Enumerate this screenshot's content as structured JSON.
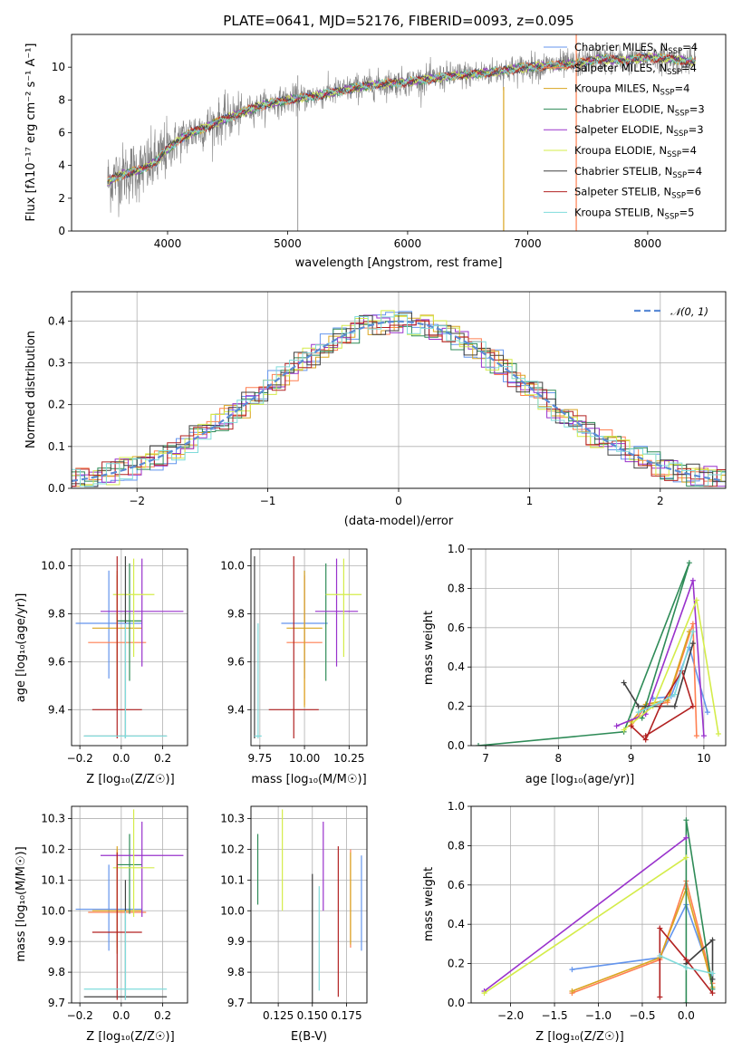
{
  "colors": {
    "chabrier_miles": "#6495ed",
    "salpeter_miles": "#ff7f50",
    "kroupa_miles": "#daa520",
    "chabrier_elodie": "#2e8b57",
    "salpeter_elodie": "#9932cc",
    "kroupa_elodie": "#d4ec4a",
    "chabrier_stelib": "#404040",
    "salpeter_stelib": "#b22222",
    "kroupa_stelib": "#7fdbdb",
    "gaussian": "#5b8bd6",
    "spectrum": "#808080"
  },
  "chart_data": [
    {
      "id": "spectrum",
      "type": "line",
      "title": "PLATE=0641, MJD=52176, FIBERID=0093, z=0.095",
      "xlabel": "wavelength [Angstrom, rest frame]",
      "ylabel": "Flux [fλ10⁻¹⁷ erg cm⁻² s⁻¹ A⁻¹]",
      "xlim": [
        3200,
        8650
      ],
      "ylim": [
        0,
        12
      ],
      "xticks": [
        "4000",
        "5000",
        "6000",
        "7000",
        "8000"
      ],
      "yticks": [
        "0",
        "2",
        "4",
        "6",
        "8",
        "10"
      ],
      "grid": false,
      "legend_position": "top-right",
      "data_trace": {
        "x": [
          3500,
          3600,
          3700,
          3800,
          3900,
          4000,
          4100,
          4200,
          4300,
          4400,
          4500,
          4600,
          4800,
          5000,
          5200,
          5400,
          5600,
          5800,
          6000,
          6200,
          6400,
          6600,
          6800,
          7000,
          7200,
          7400,
          7600,
          7800,
          8000,
          8200,
          8400
        ],
        "y": [
          3.0,
          3.4,
          3.6,
          3.8,
          4.2,
          5.0,
          5.6,
          6.0,
          6.3,
          6.6,
          6.9,
          7.2,
          7.7,
          8.0,
          8.2,
          8.5,
          8.8,
          9.0,
          9.1,
          9.3,
          9.5,
          9.6,
          9.8,
          10.0,
          10.1,
          10.2,
          10.5,
          10.4,
          10.6,
          10.5,
          10.3
        ]
      },
      "legend": [
        {
          "label": "Chabrier MILES, N",
          "sub": "SSP",
          "suffix": "=4",
          "color": "#6495ed"
        },
        {
          "label": "Salpeter MILES, N",
          "sub": "SSP",
          "suffix": "=4",
          "color": "#ff7f50"
        },
        {
          "label": "Kroupa MILES, N",
          "sub": "SSP",
          "suffix": "=4",
          "color": "#daa520"
        },
        {
          "label": "Chabrier ELODIE, N",
          "sub": "SSP",
          "suffix": "=3",
          "color": "#2e8b57"
        },
        {
          "label": "Salpeter ELODIE, N",
          "sub": "SSP",
          "suffix": "=3",
          "color": "#9932cc"
        },
        {
          "label": "Kroupa ELODIE, N",
          "sub": "SSP",
          "suffix": "=4",
          "color": "#d4ec4a"
        },
        {
          "label": "Chabrier STELIB, N",
          "sub": "SSP",
          "suffix": "=4",
          "color": "#404040"
        },
        {
          "label": "Salpeter STELIB, N",
          "sub": "SSP",
          "suffix": "=6",
          "color": "#b22222"
        },
        {
          "label": "Kroupa STELIB, N",
          "sub": "SSP",
          "suffix": "=5",
          "color": "#7fdbdb"
        }
      ]
    },
    {
      "id": "residuals",
      "type": "line",
      "xlabel": "(data-model)/error",
      "ylabel": "Normed distribution",
      "xlim": [
        -2.5,
        2.5
      ],
      "ylim": [
        0,
        0.47
      ],
      "xticks": [
        "−2",
        "−1",
        "0",
        "1",
        "2"
      ],
      "yticks": [
        "0.0",
        "0.1",
        "0.2",
        "0.3",
        "0.4"
      ],
      "grid": true,
      "legend_position": "top-right",
      "legend": [
        {
          "label": "𝒩(0, 1)",
          "color": "#5b8bd6"
        }
      ]
    },
    {
      "id": "age_vs_Z",
      "type": "scatter",
      "xlabel": "Z [log₁₀(Z/Z☉)]",
      "ylabel": "age  [log₁₀(age/yr)]",
      "xlim": [
        -0.24,
        0.32
      ],
      "ylim": [
        9.25,
        10.07
      ],
      "xticks": [
        "−0.2",
        "0.0",
        "0.2"
      ],
      "yticks": [
        "9.4",
        "9.6",
        "9.8",
        "10.0"
      ],
      "grid": true,
      "points": [
        {
          "x": -0.06,
          "y": 9.76,
          "xerr": 0.16,
          "yerr": [
            9.53,
            9.98
          ],
          "color": "#6495ed"
        },
        {
          "x": -0.02,
          "y": 9.68,
          "xerr": 0.14,
          "yerr": [
            9.42,
            9.96
          ],
          "color": "#ff7f50"
        },
        {
          "x": -0.02,
          "y": 9.74,
          "xerr": 0.12,
          "yerr": [
            9.41,
            9.98
          ],
          "color": "#daa520"
        },
        {
          "x": 0.04,
          "y": 9.77,
          "xerr": 0.06,
          "yerr": [
            9.52,
            10.01
          ],
          "color": "#2e8b57"
        },
        {
          "x": 0.1,
          "y": 9.81,
          "xerr": 0.2,
          "yerr": [
            9.58,
            10.03
          ],
          "color": "#9932cc"
        },
        {
          "x": 0.06,
          "y": 9.88,
          "xerr": 0.1,
          "yerr": [
            9.62,
            10.03
          ],
          "color": "#d4ec4a"
        },
        {
          "x": 0.02,
          "y": 9.29,
          "xerr": 0.2,
          "yerr": [
            9.28,
            10.04
          ],
          "color": "#404040"
        },
        {
          "x": -0.02,
          "y": 9.4,
          "xerr": 0.12,
          "yerr": [
            9.28,
            10.04
          ],
          "color": "#b22222"
        },
        {
          "x": 0.02,
          "y": 9.29,
          "xerr": 0.2,
          "yerr": [
            9.28,
            9.76
          ],
          "color": "#7fdbdb"
        }
      ]
    },
    {
      "id": "age_vs_mass",
      "type": "scatter",
      "xlabel": "mass [log₁₀(M/M☉)]",
      "ylabel": "",
      "xlim": [
        9.7,
        10.35
      ],
      "ylim": [
        9.25,
        10.07
      ],
      "xticks": [
        "9.75",
        "10.00",
        "10.25"
      ],
      "yticks": [
        "9.4",
        "9.6",
        "9.8",
        "10.0"
      ],
      "grid": true,
      "points": [
        {
          "x": 10.0,
          "y": 9.76,
          "xerr": 0.13,
          "yerr": [
            9.53,
            9.98
          ],
          "color": "#6495ed"
        },
        {
          "x": 10.0,
          "y": 9.68,
          "xerr": 0.1,
          "yerr": [
            9.42,
            9.96
          ],
          "color": "#ff7f50"
        },
        {
          "x": 10.0,
          "y": 9.74,
          "xerr": 0.1,
          "yerr": [
            9.41,
            9.98
          ],
          "color": "#daa520"
        },
        {
          "x": 10.12,
          "y": 9.77,
          "xerr": 0.0,
          "yerr": [
            9.52,
            10.01
          ],
          "color": "#2e8b57"
        },
        {
          "x": 10.18,
          "y": 9.81,
          "xerr": 0.12,
          "yerr": [
            9.58,
            10.03
          ],
          "color": "#9932cc"
        },
        {
          "x": 10.22,
          "y": 9.88,
          "xerr": 0.1,
          "yerr": [
            9.62,
            10.03
          ],
          "color": "#d4ec4a"
        },
        {
          "x": 9.72,
          "y": 9.29,
          "xerr": 0.0,
          "yerr": [
            9.28,
            10.04
          ],
          "color": "#404040"
        },
        {
          "x": 9.94,
          "y": 9.4,
          "xerr": 0.14,
          "yerr": [
            9.28,
            10.04
          ],
          "color": "#b22222"
        },
        {
          "x": 9.74,
          "y": 9.29,
          "xerr": 0.02,
          "yerr": [
            9.28,
            9.76
          ],
          "color": "#7fdbdb"
        }
      ]
    },
    {
      "id": "mass_weight_vs_age",
      "type": "line",
      "xlabel": "age  [log₁₀(age/yr)]",
      "ylabel": "mass weight",
      "xlim": [
        6.8,
        10.3
      ],
      "ylim": [
        0,
        1.0
      ],
      "xticks": [
        "7",
        "8",
        "9",
        "10"
      ],
      "yticks": [
        "0.0",
        "0.2",
        "0.4",
        "0.6",
        "0.8",
        "1.0"
      ],
      "grid": true
    },
    {
      "id": "mass_vs_Z",
      "type": "scatter",
      "xlabel": "Z [log₁₀(Z/Z☉)]",
      "ylabel": "mass [log₁₀(M/M☉)]",
      "xlim": [
        -0.24,
        0.32
      ],
      "ylim": [
        9.7,
        10.34
      ],
      "xticks": [
        "−0.2",
        "0.0",
        "0.2"
      ],
      "yticks": [
        "9.7",
        "9.8",
        "9.9",
        "10.0",
        "10.1",
        "10.2",
        "10.3"
      ],
      "grid": true
    },
    {
      "id": "mass_vs_ebv",
      "type": "scatter",
      "xlabel": "E(B-V)",
      "ylabel": "",
      "xlim": [
        0.105,
        0.19
      ],
      "ylim": [
        9.7,
        10.34
      ],
      "xticks": [
        "0.125",
        "0.150",
        "0.175"
      ],
      "yticks": [
        "9.7",
        "9.8",
        "9.9",
        "10.0",
        "10.1",
        "10.2",
        "10.3"
      ],
      "grid": true
    },
    {
      "id": "mass_weight_vs_Z",
      "type": "line",
      "xlabel": "Z [log₁₀(Z/Z☉)]",
      "ylabel": "mass weight",
      "xlim": [
        -2.45,
        0.45
      ],
      "ylim": [
        0,
        1.0
      ],
      "xticks": [
        "−2.0",
        "−1.5",
        "−1.0",
        "−0.5",
        "0.0"
      ],
      "yticks": [
        "0.0",
        "0.2",
        "0.4",
        "0.6",
        "0.8",
        "1.0"
      ],
      "grid": true
    }
  ]
}
